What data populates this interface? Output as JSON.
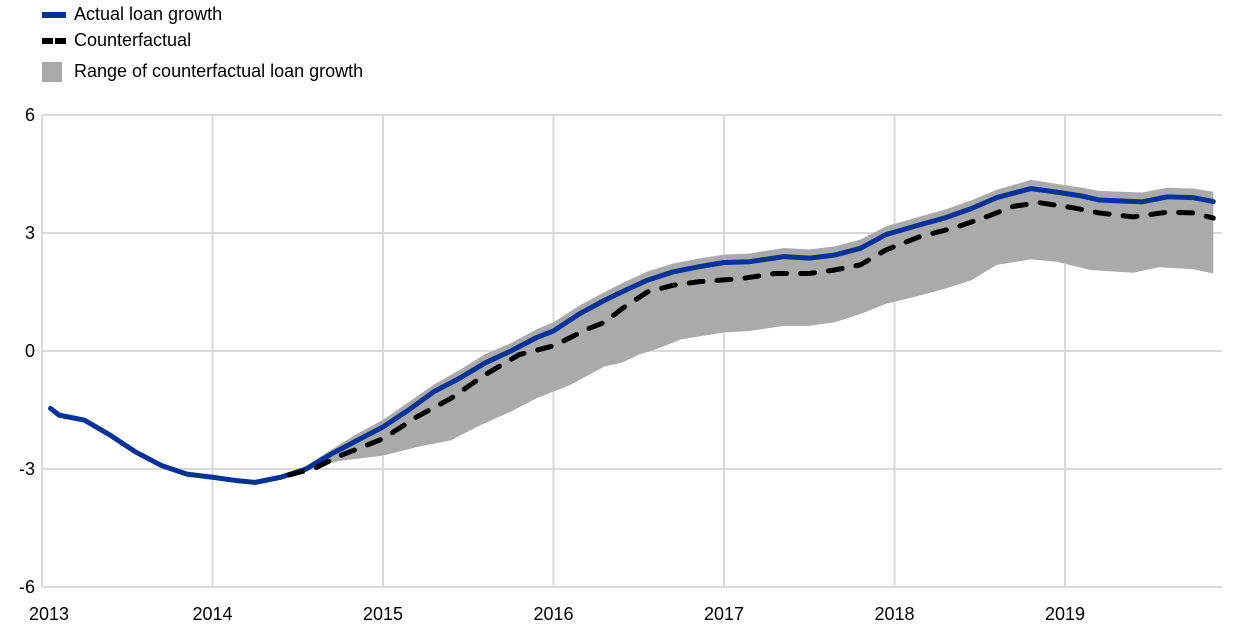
{
  "chart_data": {
    "type": "line",
    "title": "",
    "xlabel": "",
    "ylabel": "",
    "xlim": [
      2013,
      2019.9
    ],
    "ylim": [
      -6,
      6
    ],
    "yticks": [
      6,
      3,
      0,
      -3,
      -6
    ],
    "xticks": [
      2013,
      2014,
      2015,
      2016,
      2017,
      2018,
      2019
    ],
    "grid": true,
    "legend_placement": "top-left",
    "colors": {
      "actual": "#003299",
      "counterfactual": "#000000",
      "range": "#aaaaaa",
      "grid": "#d9d9d9"
    },
    "legend": [
      "Actual loan growth",
      "Counterfactual",
      "Range of counterfactual loan growth"
    ],
    "series": [
      {
        "name": "Actual loan growth",
        "style": "solid",
        "x": [
          2013.05,
          2013.1,
          2013.25,
          2013.4,
          2013.55,
          2013.7,
          2013.85,
          2014.0,
          2014.15,
          2014.25,
          2014.4,
          2014.55,
          2014.7,
          2014.85,
          2015.0,
          2015.15,
          2015.3,
          2015.45,
          2015.6,
          2015.75,
          2015.9,
          2016.0,
          2016.15,
          2016.3,
          2016.4,
          2016.55,
          2016.7,
          2016.85,
          2017.0,
          2017.15,
          2017.35,
          2017.5,
          2017.65,
          2017.8,
          2017.95,
          2018.15,
          2018.3,
          2018.45,
          2018.6,
          2018.8,
          2018.95,
          2019.1,
          2019.2,
          2019.45,
          2019.6,
          2019.75,
          2019.87
        ],
        "y": [
          -1.46,
          -1.63,
          -1.76,
          -2.14,
          -2.57,
          -2.91,
          -3.13,
          -3.21,
          -3.3,
          -3.34,
          -3.21,
          -3.0,
          -2.61,
          -2.27,
          -1.93,
          -1.5,
          -1.03,
          -0.69,
          -0.3,
          0.0,
          0.34,
          0.51,
          0.94,
          1.29,
          1.5,
          1.8,
          2.01,
          2.14,
          2.25,
          2.27,
          2.4,
          2.36,
          2.44,
          2.61,
          2.96,
          3.21,
          3.39,
          3.62,
          3.9,
          4.13,
          4.04,
          3.94,
          3.84,
          3.79,
          3.92,
          3.9,
          3.8
        ]
      },
      {
        "name": "Counterfactual",
        "style": "dashed",
        "x": [
          2014.45,
          2014.6,
          2014.75,
          2015.0,
          2015.2,
          2015.4,
          2015.6,
          2015.8,
          2016.0,
          2016.2,
          2016.3,
          2016.4,
          2016.55,
          2016.7,
          2016.85,
          2017.1,
          2017.3,
          2017.5,
          2017.65,
          2017.8,
          2017.95,
          2018.15,
          2018.35,
          2018.55,
          2018.7,
          2018.85,
          2019.05,
          2019.2,
          2019.4,
          2019.6,
          2019.75,
          2019.87
        ],
        "y": [
          -3.15,
          -2.98,
          -2.66,
          -2.23,
          -1.67,
          -1.2,
          -0.6,
          -0.09,
          0.13,
          0.56,
          0.73,
          1.07,
          1.5,
          1.67,
          1.76,
          1.84,
          1.97,
          1.97,
          2.06,
          2.19,
          2.57,
          2.91,
          3.13,
          3.43,
          3.68,
          3.77,
          3.64,
          3.51,
          3.41,
          3.53,
          3.51,
          3.38
        ]
      }
    ],
    "range": {
      "name": "Range of counterfactual loan growth",
      "upper_x": [
        2014.5,
        2014.7,
        2014.85,
        2015.0,
        2015.15,
        2015.3,
        2015.45,
        2015.6,
        2015.75,
        2015.9,
        2016.0,
        2016.15,
        2016.3,
        2016.4,
        2016.55,
        2016.7,
        2016.85,
        2017.0,
        2017.15,
        2017.35,
        2017.5,
        2017.65,
        2017.8,
        2017.95,
        2018.15,
        2018.3,
        2018.45,
        2018.6,
        2018.8,
        2018.95,
        2019.1,
        2019.2,
        2019.45,
        2019.6,
        2019.75,
        2019.87
      ],
      "upper_y": [
        -3.05,
        -2.5,
        -2.1,
        -1.75,
        -1.3,
        -0.85,
        -0.48,
        -0.08,
        0.2,
        0.55,
        0.73,
        1.15,
        1.5,
        1.72,
        2.02,
        2.22,
        2.35,
        2.45,
        2.48,
        2.62,
        2.58,
        2.66,
        2.83,
        3.17,
        3.42,
        3.6,
        3.83,
        4.1,
        4.35,
        4.25,
        4.15,
        4.07,
        4.03,
        4.15,
        4.13,
        4.05
      ],
      "lower_x": [
        2014.5,
        2014.75,
        2015.0,
        2015.2,
        2015.4,
        2015.55,
        2015.75,
        2015.9,
        2016.1,
        2016.3,
        2016.4,
        2016.5,
        2016.6,
        2016.75,
        2017.0,
        2017.15,
        2017.35,
        2017.5,
        2017.65,
        2017.8,
        2017.95,
        2018.15,
        2018.3,
        2018.45,
        2018.6,
        2018.8,
        2018.95,
        2019.15,
        2019.4,
        2019.55,
        2019.75,
        2019.87
      ],
      "lower_y": [
        -3.05,
        -2.79,
        -2.66,
        -2.44,
        -2.27,
        -1.93,
        -1.54,
        -1.2,
        -0.86,
        -0.39,
        -0.3,
        -0.09,
        0.04,
        0.3,
        0.47,
        0.51,
        0.64,
        0.64,
        0.73,
        0.94,
        1.2,
        1.41,
        1.59,
        1.8,
        2.19,
        2.33,
        2.27,
        2.06,
        1.99,
        2.13,
        2.08,
        1.97
      ]
    }
  }
}
